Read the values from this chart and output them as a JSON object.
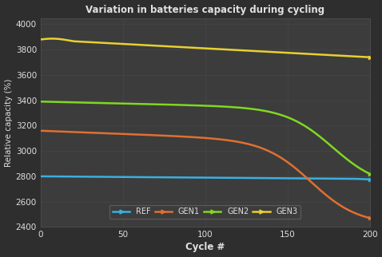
{
  "title": "Variation in batteries capacity during cycling",
  "xlabel": "Cycle #",
  "ylabel": "Relative capacity (%)",
  "background_color": "#2e2e2e",
  "plot_bg_color": "#3c3c3c",
  "grid_color": "#4a4a4a",
  "text_color": "#e0e0e0",
  "xlim": [
    0,
    200
  ],
  "ylim": [
    2400,
    4050
  ],
  "yticks": [
    2400,
    2600,
    2800,
    3000,
    3200,
    3400,
    3600,
    3800,
    4000
  ],
  "xticks": [
    0,
    50,
    100,
    150,
    200
  ],
  "series": {
    "REF": {
      "color": "#3ab0e0",
      "lw": 1.8
    },
    "GEN1": {
      "color": "#e07030",
      "lw": 1.8
    },
    "GEN2": {
      "color": "#80d820",
      "lw": 1.8
    },
    "GEN3": {
      "color": "#e8d030",
      "lw": 1.8
    }
  }
}
